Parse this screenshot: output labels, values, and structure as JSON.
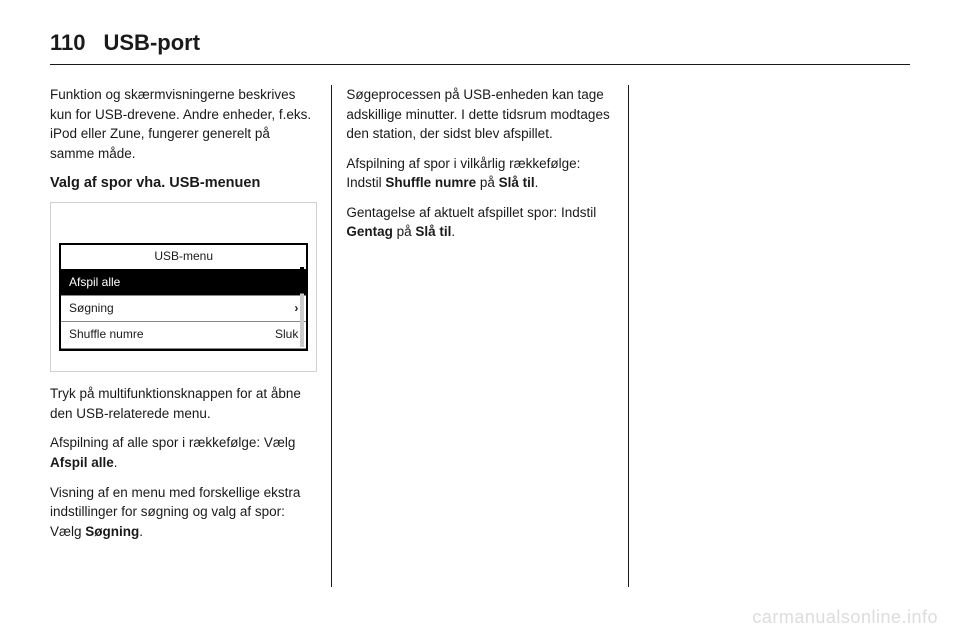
{
  "header": {
    "page_number": "110",
    "title": "USB-port"
  },
  "col1": {
    "intro": "Funktion og skærmvisningerne be­skrives kun for USB-drevene. Andre enheder, f.eks. iPod eller Zune, fun­gerer generelt på samme måde.",
    "heading": "Valg af spor vha. USB-menuen",
    "menu": {
      "title": "USB-menu",
      "items": [
        {
          "label": "Afspil alle",
          "right": "",
          "selected": true
        },
        {
          "label": "Søgning",
          "right": "›",
          "selected": false
        },
        {
          "label": "Shuffle numre",
          "right": "Sluk",
          "selected": false
        }
      ]
    },
    "p1": "Tryk på multifunktionsknappen for at åbne den USB-relaterede menu.",
    "p2_pre": "Afspilning af alle spor i rækkefølge: Vælg ",
    "p2_bold": "Afspil alle",
    "p2_post": ".",
    "p3_pre": "Visning af en menu med forskellige ekstra indstillinger for søgning og valg af spor: Vælg ",
    "p3_bold": "Søgning",
    "p3_post": "."
  },
  "col2": {
    "p1": "Søgeprocessen på USB-enheden kan tage adskillige minutter. I dette tidsrum modtages den station, der sidst blev afspillet.",
    "p2_pre": "Afspilning af spor i vilkårlig række­følge: Indstil ",
    "p2_bold1": "Shuffle numre",
    "p2_mid": " på ",
    "p2_bold2": "Slå til",
    "p2_post": ".",
    "p3_pre": "Gentagelse af aktuelt afspillet spor: Indstil ",
    "p3_bold1": "Gentag",
    "p3_mid": " på ",
    "p3_bold2": "Slå til",
    "p3_post": "."
  },
  "watermark": "carmanualsonline.info"
}
